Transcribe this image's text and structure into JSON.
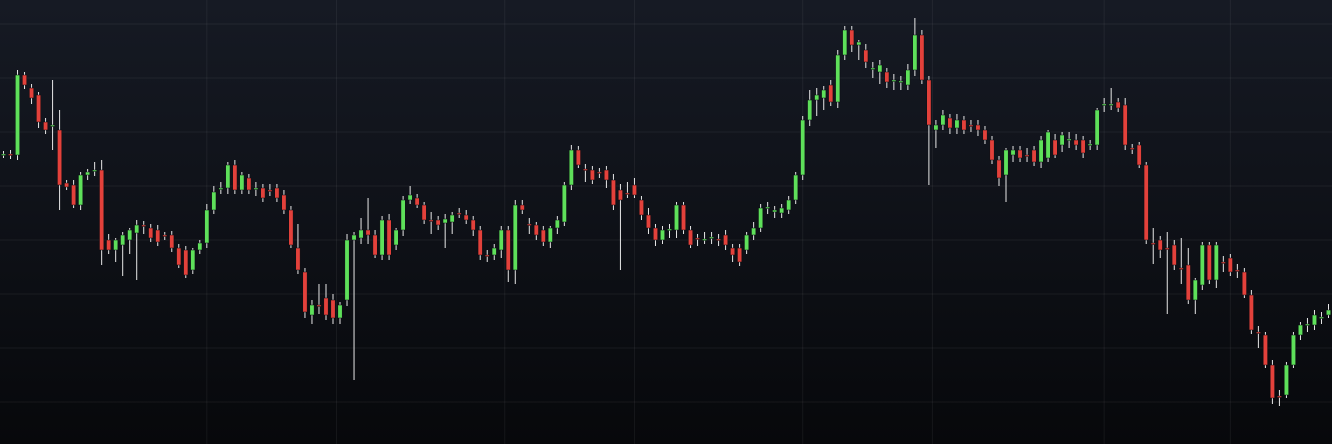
{
  "chart_data": {
    "type": "candlestick",
    "up_color": "#5ee05a",
    "down_color": "#e3413b",
    "wick_color": "#e8e8e8",
    "grid": true,
    "xlim": [
      -0.5,
      189.5
    ],
    "ylim": [
      0,
      444
    ],
    "xticks": [
      29,
      47.5,
      71.5,
      90,
      114,
      132.5,
      157,
      175
    ],
    "yticks": [
      42,
      96,
      150,
      204,
      258,
      312,
      366,
      420
    ],
    "ohlc": [
      [
        289,
        293,
        286,
        290
      ],
      [
        290,
        294,
        285,
        289
      ],
      [
        289,
        374,
        284,
        369
      ],
      [
        369,
        372,
        355,
        359
      ],
      [
        356,
        360,
        340,
        346
      ],
      [
        349,
        352,
        316,
        322
      ],
      [
        322,
        326,
        310,
        314
      ],
      [
        318,
        364,
        294,
        319
      ],
      [
        314,
        334,
        234,
        259
      ],
      [
        261,
        264,
        254,
        257
      ],
      [
        259,
        264,
        236,
        239
      ],
      [
        239,
        272,
        234,
        269
      ],
      [
        269,
        275,
        264,
        272
      ],
      [
        273,
        282,
        268,
        274
      ],
      [
        274,
        284,
        179,
        194
      ],
      [
        204,
        210,
        190,
        194
      ],
      [
        194,
        206,
        182,
        204
      ],
      [
        199,
        212,
        168,
        209
      ],
      [
        204,
        216,
        190,
        214
      ],
      [
        211,
        224,
        164,
        219
      ],
      [
        219,
        223,
        210,
        218
      ],
      [
        216,
        220,
        202,
        206
      ],
      [
        214,
        219,
        198,
        202
      ],
      [
        209,
        212,
        204,
        208
      ],
      [
        209,
        213,
        192,
        196
      ],
      [
        196,
        200,
        176,
        179
      ],
      [
        194,
        198,
        166,
        169
      ],
      [
        174,
        196,
        170,
        194
      ],
      [
        194,
        204,
        190,
        201
      ],
      [
        201,
        240,
        196,
        234
      ],
      [
        234,
        258,
        230,
        252
      ],
      [
        256,
        262,
        250,
        256
      ],
      [
        256,
        282,
        250,
        279
      ],
      [
        279,
        284,
        250,
        254
      ],
      [
        254,
        272,
        250,
        269
      ],
      [
        266,
        270,
        250,
        254
      ],
      [
        256,
        262,
        248,
        256
      ],
      [
        256,
        260,
        242,
        246
      ],
      [
        254,
        260,
        248,
        253
      ],
      [
        256,
        260,
        242,
        246
      ],
      [
        249,
        254,
        230,
        234
      ],
      [
        234,
        238,
        196,
        199
      ],
      [
        196,
        220,
        170,
        174
      ],
      [
        172,
        176,
        126,
        132
      ],
      [
        129,
        144,
        120,
        139
      ],
      [
        139,
        160,
        130,
        138
      ],
      [
        146,
        160,
        124,
        129
      ],
      [
        144,
        150,
        120,
        126
      ],
      [
        126,
        142,
        120,
        139
      ],
      [
        144,
        210,
        138,
        204
      ],
      [
        204,
        212,
        64,
        209
      ],
      [
        206,
        226,
        200,
        214
      ],
      [
        214,
        246,
        200,
        209
      ],
      [
        209,
        214,
        186,
        189
      ],
      [
        189,
        228,
        184,
        224
      ],
      [
        224,
        230,
        184,
        189
      ],
      [
        199,
        216,
        194,
        214
      ],
      [
        214,
        248,
        208,
        244
      ],
      [
        244,
        258,
        240,
        249
      ],
      [
        246,
        250,
        236,
        239
      ],
      [
        239,
        242,
        220,
        224
      ],
      [
        224,
        232,
        210,
        223
      ],
      [
        224,
        228,
        214,
        219
      ],
      [
        221,
        230,
        196,
        225
      ],
      [
        222,
        232,
        210,
        229
      ],
      [
        231,
        236,
        226,
        230
      ],
      [
        229,
        234,
        220,
        224
      ],
      [
        224,
        228,
        208,
        214
      ],
      [
        214,
        218,
        184,
        189
      ],
      [
        189,
        194,
        182,
        188
      ],
      [
        189,
        200,
        184,
        196
      ],
      [
        194,
        218,
        186,
        214
      ],
      [
        214,
        218,
        162,
        174
      ],
      [
        174,
        244,
        160,
        239
      ],
      [
        239,
        244,
        230,
        234
      ],
      [
        220,
        226,
        210,
        219
      ],
      [
        219,
        222,
        204,
        209
      ],
      [
        214,
        218,
        198,
        202
      ],
      [
        202,
        218,
        196,
        216
      ],
      [
        216,
        228,
        210,
        224
      ],
      [
        222,
        262,
        218,
        259
      ],
      [
        259,
        299,
        254,
        294
      ],
      [
        294,
        298,
        276,
        279
      ],
      [
        275,
        280,
        262,
        274
      ],
      [
        274,
        278,
        260,
        264
      ],
      [
        272,
        276,
        266,
        271
      ],
      [
        274,
        278,
        256,
        264
      ],
      [
        264,
        270,
        234,
        239
      ],
      [
        254,
        260,
        174,
        244
      ],
      [
        251,
        262,
        246,
        250
      ],
      [
        259,
        266,
        246,
        249
      ],
      [
        244,
        248,
        224,
        229
      ],
      [
        229,
        236,
        210,
        216
      ],
      [
        216,
        220,
        198,
        204
      ],
      [
        204,
        218,
        200,
        214
      ],
      [
        214,
        220,
        206,
        215
      ],
      [
        214,
        242,
        206,
        239
      ],
      [
        239,
        242,
        210,
        214
      ],
      [
        214,
        218,
        196,
        199
      ],
      [
        206,
        210,
        198,
        205
      ],
      [
        204,
        212,
        200,
        205
      ],
      [
        206,
        212,
        200,
        207
      ],
      [
        205,
        210,
        198,
        204
      ],
      [
        209,
        214,
        194,
        199
      ],
      [
        196,
        200,
        182,
        189
      ],
      [
        196,
        200,
        178,
        182
      ],
      [
        194,
        212,
        190,
        209
      ],
      [
        209,
        222,
        204,
        216
      ],
      [
        216,
        240,
        212,
        236
      ],
      [
        236,
        242,
        230,
        237
      ],
      [
        232,
        238,
        226,
        234
      ],
      [
        231,
        240,
        226,
        236
      ],
      [
        234,
        248,
        230,
        244
      ],
      [
        244,
        272,
        240,
        269
      ],
      [
        269,
        328,
        264,
        324
      ],
      [
        324,
        354,
        318,
        344
      ],
      [
        344,
        356,
        328,
        349
      ],
      [
        346,
        358,
        334,
        354
      ],
      [
        359,
        364,
        338,
        342
      ],
      [
        342,
        394,
        336,
        389
      ],
      [
        389,
        418,
        384,
        414
      ],
      [
        414,
        418,
        392,
        399
      ],
      [
        399,
        404,
        384,
        402
      ],
      [
        394,
        400,
        376,
        382
      ],
      [
        376,
        382,
        366,
        376
      ],
      [
        372,
        384,
        360,
        379
      ],
      [
        372,
        376,
        356,
        362
      ],
      [
        364,
        370,
        354,
        364
      ],
      [
        362,
        368,
        354,
        363
      ],
      [
        359,
        380,
        354,
        374
      ],
      [
        374,
        426,
        368,
        409
      ],
      [
        409,
        414,
        360,
        364
      ],
      [
        364,
        368,
        259,
        319
      ],
      [
        314,
        324,
        296,
        319
      ],
      [
        319,
        334,
        314,
        329
      ],
      [
        326,
        330,
        310,
        316
      ],
      [
        316,
        330,
        310,
        324
      ],
      [
        324,
        328,
        310,
        314
      ],
      [
        319,
        324,
        312,
        318
      ],
      [
        319,
        324,
        308,
        314
      ],
      [
        314,
        318,
        300,
        304
      ],
      [
        304,
        308,
        280,
        284
      ],
      [
        284,
        288,
        258,
        266
      ],
      [
        269,
        296,
        242,
        294
      ],
      [
        289,
        298,
        282,
        294
      ],
      [
        294,
        298,
        282,
        286
      ],
      [
        289,
        296,
        282,
        288
      ],
      [
        294,
        298,
        278,
        282
      ],
      [
        282,
        308,
        276,
        304
      ],
      [
        286,
        314,
        282,
        312
      ],
      [
        304,
        310,
        286,
        289
      ],
      [
        299,
        312,
        292,
        309
      ],
      [
        304,
        312,
        296,
        305
      ],
      [
        304,
        310,
        294,
        299
      ],
      [
        304,
        308,
        286,
        291
      ],
      [
        299,
        304,
        294,
        300
      ],
      [
        299,
        336,
        294,
        334
      ],
      [
        339,
        346,
        332,
        340
      ],
      [
        339,
        356,
        334,
        340
      ],
      [
        342,
        346,
        332,
        336
      ],
      [
        339,
        346,
        294,
        299
      ],
      [
        296,
        300,
        290,
        295
      ],
      [
        299,
        302,
        276,
        279
      ],
      [
        279,
        282,
        200,
        204
      ],
      [
        201,
        216,
        180,
        200
      ],
      [
        204,
        208,
        186,
        194
      ],
      [
        196,
        212,
        130,
        195
      ],
      [
        199,
        204,
        174,
        179
      ],
      [
        176,
        206,
        160,
        175
      ],
      [
        179,
        196,
        140,
        144
      ],
      [
        144,
        166,
        130,
        164
      ],
      [
        159,
        202,
        154,
        199
      ],
      [
        199,
        202,
        160,
        164
      ],
      [
        164,
        202,
        156,
        199
      ],
      [
        182,
        188,
        172,
        181
      ],
      [
        186,
        190,
        168,
        172
      ],
      [
        174,
        180,
        166,
        173
      ],
      [
        172,
        176,
        146,
        149
      ],
      [
        149,
        154,
        110,
        114
      ],
      [
        112,
        118,
        96,
        111
      ],
      [
        109,
        112,
        76,
        79
      ],
      [
        79,
        84,
        40,
        46
      ],
      [
        48,
        54,
        38,
        47
      ],
      [
        49,
        82,
        46,
        79
      ],
      [
        79,
        112,
        76,
        109
      ],
      [
        109,
        122,
        104,
        119
      ],
      [
        119,
        126,
        112,
        120
      ],
      [
        119,
        134,
        114,
        129
      ],
      [
        126,
        132,
        120,
        127
      ],
      [
        129,
        140,
        126,
        134
      ]
    ]
  }
}
